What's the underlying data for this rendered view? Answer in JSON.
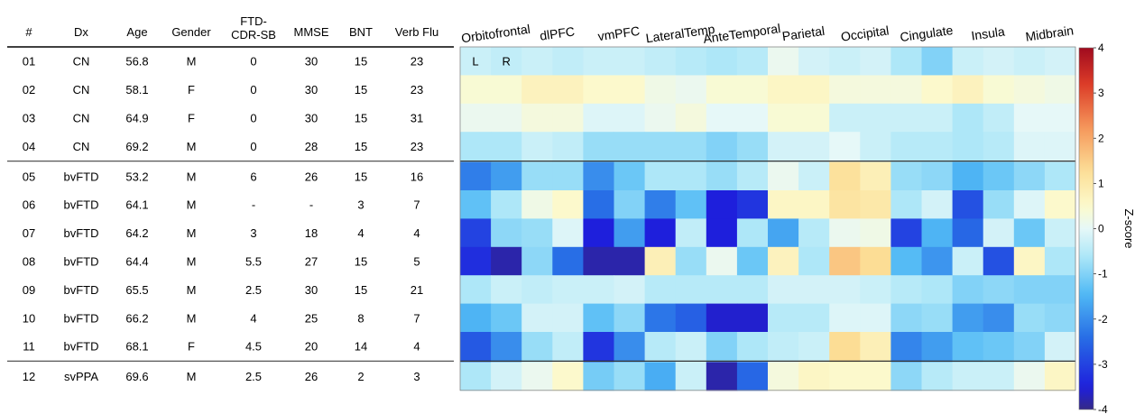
{
  "table": {
    "columns": [
      "#",
      "Dx",
      "Age",
      "Gender",
      "FTD-\nCDR-SB",
      "MMSE",
      "BNT",
      "Verb Flu"
    ],
    "rows": [
      [
        "01",
        "CN",
        "56.8",
        "M",
        "0",
        "30",
        "15",
        "23"
      ],
      [
        "02",
        "CN",
        "58.1",
        "F",
        "0",
        "30",
        "15",
        "23"
      ],
      [
        "03",
        "CN",
        "64.9",
        "F",
        "0",
        "30",
        "15",
        "31"
      ],
      [
        "04",
        "CN",
        "69.2",
        "M",
        "0",
        "28",
        "15",
        "23"
      ],
      [
        "05",
        "bvFTD",
        "53.2",
        "M",
        "6",
        "26",
        "15",
        "16"
      ],
      [
        "06",
        "bvFTD",
        "64.1",
        "M",
        "-",
        "-",
        "3",
        "7"
      ],
      [
        "07",
        "bvFTD",
        "64.2",
        "M",
        "3",
        "18",
        "4",
        "4"
      ],
      [
        "08",
        "bvFTD",
        "64.4",
        "M",
        "5.5",
        "27",
        "15",
        "5"
      ],
      [
        "09",
        "bvFTD",
        "65.5",
        "M",
        "2.5",
        "30",
        "15",
        "21"
      ],
      [
        "10",
        "bvFTD",
        "66.2",
        "M",
        "4",
        "25",
        "8",
        "7"
      ],
      [
        "11",
        "bvFTD",
        "68.1",
        "F",
        "4.5",
        "20",
        "14",
        "4"
      ],
      [
        "12",
        "svPPA",
        "69.6",
        "M",
        "2.5",
        "26",
        "2",
        "3"
      ]
    ],
    "group_separators_after_rows": [
      4,
      11
    ]
  },
  "chart_data": {
    "type": "heatmap",
    "title": "",
    "x_region_labels": [
      "Orbitofrontal",
      "dlPFC",
      "vmPFC",
      "LateralTemp",
      "AnteTemporal",
      "Parietal",
      "Occipital",
      "Cingulate",
      "Insula",
      "Midbrain"
    ],
    "hemisphere_labels": [
      "L",
      "R"
    ],
    "row_labels": [
      "01",
      "02",
      "03",
      "04",
      "05",
      "06",
      "07",
      "08",
      "09",
      "10",
      "11",
      "12"
    ],
    "values": [
      [
        -0.3,
        -0.4,
        -0.3,
        -0.4,
        -0.3,
        -0.3,
        -0.4,
        -0.5,
        -0.6,
        -0.5,
        0.1,
        -0.2,
        -0.3,
        -0.2,
        -0.6,
        -1.0,
        -0.3,
        -0.2,
        -0.3,
        -0.2
      ],
      [
        0.4,
        0.4,
        0.7,
        0.7,
        0.5,
        0.5,
        0.2,
        0.1,
        0.4,
        0.4,
        0.6,
        0.6,
        0.3,
        0.3,
        0.3,
        0.5,
        0.7,
        0.4,
        0.3,
        0.2
      ],
      [
        0.1,
        0.1,
        0.3,
        0.3,
        -0.1,
        -0.1,
        0.1,
        0.3,
        0.0,
        0.0,
        0.4,
        0.4,
        -0.3,
        -0.3,
        -0.3,
        -0.3,
        -0.6,
        -0.4,
        0.0,
        0.0
      ],
      [
        -0.6,
        -0.6,
        -0.3,
        -0.4,
        -0.8,
        -0.8,
        -0.8,
        -0.8,
        -1.0,
        -0.8,
        -0.2,
        -0.2,
        0.0,
        -0.3,
        -0.5,
        -0.5,
        -0.6,
        -0.5,
        -0.1,
        -0.1
      ],
      [
        -2.2,
        -1.8,
        -0.8,
        -0.8,
        -2.0,
        -1.2,
        -0.6,
        -0.6,
        -0.8,
        -0.5,
        0.1,
        -0.3,
        1.2,
        0.8,
        -0.8,
        -0.9,
        -1.5,
        -1.2,
        -0.9,
        -0.6
      ],
      [
        -1.3,
        -0.6,
        0.2,
        0.5,
        -2.4,
        -1.0,
        -2.2,
        -1.3,
        -3.5,
        -3.2,
        0.6,
        0.6,
        1.1,
        1.0,
        -0.6,
        -0.2,
        -2.8,
        -0.8,
        -0.1,
        0.5
      ],
      [
        -3.0,
        -0.9,
        -0.8,
        -0.1,
        -3.5,
        -1.8,
        -3.5,
        -0.4,
        -3.5,
        -0.6,
        -1.7,
        -0.5,
        0.1,
        0.2,
        -3.0,
        -1.5,
        -2.5,
        -0.2,
        -1.2,
        -0.3
      ],
      [
        -3.3,
        -3.8,
        -0.9,
        -2.4,
        -3.8,
        -3.8,
        0.8,
        -0.8,
        0.1,
        -1.2,
        0.7,
        -0.6,
        1.6,
        1.3,
        -1.4,
        -1.9,
        -0.3,
        -2.8,
        0.6,
        -0.6
      ],
      [
        -0.6,
        -0.3,
        -0.4,
        -0.3,
        -0.3,
        -0.2,
        -0.5,
        -0.5,
        -0.5,
        -0.5,
        -0.2,
        -0.2,
        -0.2,
        -0.3,
        -0.5,
        -0.6,
        -1.0,
        -0.9,
        -1.0,
        -1.0
      ],
      [
        -1.5,
        -1.2,
        -0.2,
        -0.2,
        -1.3,
        -0.9,
        -2.3,
        -2.6,
        -3.6,
        -3.6,
        -0.5,
        -0.5,
        -0.1,
        -0.1,
        -0.9,
        -0.8,
        -1.8,
        -2.0,
        -0.8,
        -0.9
      ],
      [
        -2.7,
        -2.0,
        -0.8,
        -0.4,
        -3.2,
        -2.0,
        -0.5,
        -0.3,
        -1.0,
        -0.6,
        -0.4,
        -0.3,
        1.3,
        0.8,
        -2.1,
        -1.8,
        -1.3,
        -1.2,
        -1.0,
        -0.2
      ],
      [
        -0.6,
        -0.2,
        0.1,
        0.5,
        -1.1,
        -0.8,
        -1.6,
        -0.3,
        -3.8,
        -2.5,
        0.3,
        0.6,
        0.5,
        0.5,
        -0.9,
        -0.5,
        -0.3,
        -0.3,
        0.1,
        0.6
      ]
    ],
    "group_separators_after_rows": [
      4,
      11
    ],
    "colorbar": {
      "label": "Z-score",
      "range": [
        -4,
        4
      ],
      "ticks": [
        "4",
        "3",
        "2",
        "1",
        "0",
        "-1",
        "-2",
        "-3",
        "-4"
      ]
    }
  }
}
